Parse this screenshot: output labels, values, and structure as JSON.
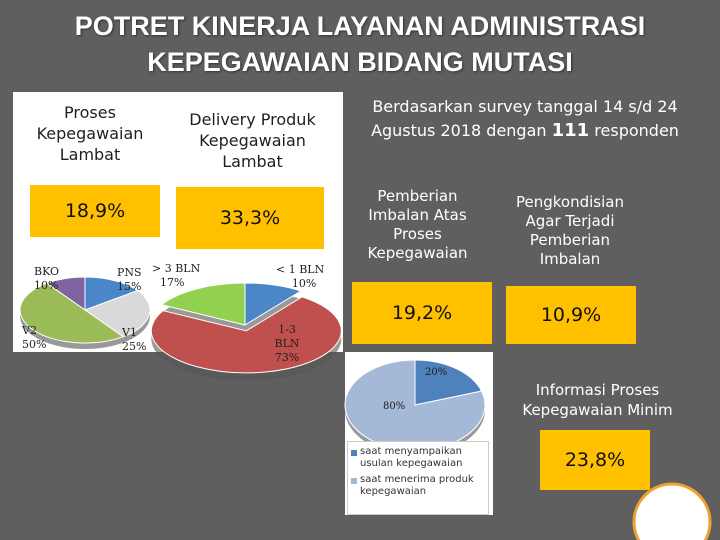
{
  "title": {
    "line1": "POTRET KINERJA LAYANAN ADMINISTRASI",
    "line2": "KEPEGAWAIAN BIDANG MUTASI"
  },
  "survey": {
    "text_pre": "Berdasarkan survey tanggal 14 s/d 24 Agustus 2018 dengan",
    "respondents": "111",
    "text_post": "responden"
  },
  "left_panel": {
    "heading": "Proses Kepegawaian Lambat",
    "percent": "18,9%"
  },
  "middle_panel": {
    "heading": "Delivery Produk Kepegawaian Lambat",
    "percent": "33,3%"
  },
  "right_top_left": {
    "heading": "Pemberian Imbalan Atas Proses Kepegawaian",
    "percent": "19,2%"
  },
  "right_top_right": {
    "heading": "Pengkondisian Agar Terjadi Pemberian Imbalan",
    "percent": "10,9%"
  },
  "right_bottom": {
    "heading": "Informasi Proses Kepegawaian Minim",
    "percent": "23,8%"
  },
  "colors": {
    "yellow": "#ffc000",
    "blue": "#4a86c8",
    "purple": "#8064a2",
    "green": "#9bbb59",
    "red": "#c0504d",
    "lightgreen": "#92d050",
    "steel": "#a4b8d8",
    "steel_dark": "#4f81bd"
  },
  "chart_data": [
    {
      "type": "pie",
      "title": "Proses Kepegawaian Lambat",
      "categories": [
        "BKO",
        "PNS",
        "V1",
        "V2"
      ],
      "values": [
        10,
        15,
        25,
        50
      ],
      "labels": [
        {
          "name": "BKO",
          "value": "10%"
        },
        {
          "name": "PNS",
          "value": "15%"
        },
        {
          "name": "V1",
          "value": "25%"
        },
        {
          "name": "V2",
          "value": "50%"
        }
      ]
    },
    {
      "type": "pie",
      "title": "Delivery Produk Kepegawaian Lambat",
      "categories": [
        "> 3 BLN",
        "< 1 BLN",
        "1-3 BLN"
      ],
      "values": [
        17,
        10,
        73
      ],
      "labels": [
        {
          "name": "> 3 BLN",
          "value": "17%"
        },
        {
          "name": "< 1 BLN",
          "value": "10%"
        },
        {
          "name": "1-3 BLN",
          "value": "73%"
        }
      ]
    },
    {
      "type": "pie",
      "title": "Pemberian Imbalan Atas Proses Kepegawaian",
      "categories": [
        "saat menyampaikan usulan kepegawaian",
        "saat menerima produk kepegawaian"
      ],
      "values": [
        20,
        80
      ],
      "labels": [
        {
          "name": "saat menyampaikan usulan kepegawaian",
          "value": "20%"
        },
        {
          "name": "saat menerima produk kepegawaian",
          "value": "80%"
        }
      ]
    }
  ]
}
